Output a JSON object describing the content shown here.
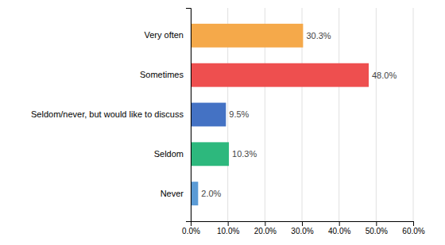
{
  "chart_data": {
    "type": "bar",
    "orientation": "horizontal",
    "categories": [
      "Very often",
      "Sometimes",
      "Seldom/never, but would like to discuss",
      "Seldom",
      "Never"
    ],
    "values": [
      30.3,
      48.0,
      9.5,
      10.3,
      2.0
    ],
    "colors": [
      "#F5A94A",
      "#EE4F4F",
      "#4472C4",
      "#2DB87D",
      "#5B9BD5"
    ],
    "data_labels": true,
    "value_labels": [
      "30.3%",
      "48.0%",
      "9.5%",
      "10.3%",
      "2.0%"
    ],
    "xlim": [
      0,
      60
    ],
    "xticks": [
      {
        "value": 0,
        "label": "0.0%"
      },
      {
        "value": 10,
        "label": "10.0%"
      },
      {
        "value": 20,
        "label": "20.0%"
      },
      {
        "value": 30,
        "label": "30.0%"
      },
      {
        "value": 40,
        "label": "40.0%"
      },
      {
        "value": 50,
        "label": "50.0%"
      },
      {
        "value": 60,
        "label": "60.0%"
      }
    ],
    "grid": true
  }
}
